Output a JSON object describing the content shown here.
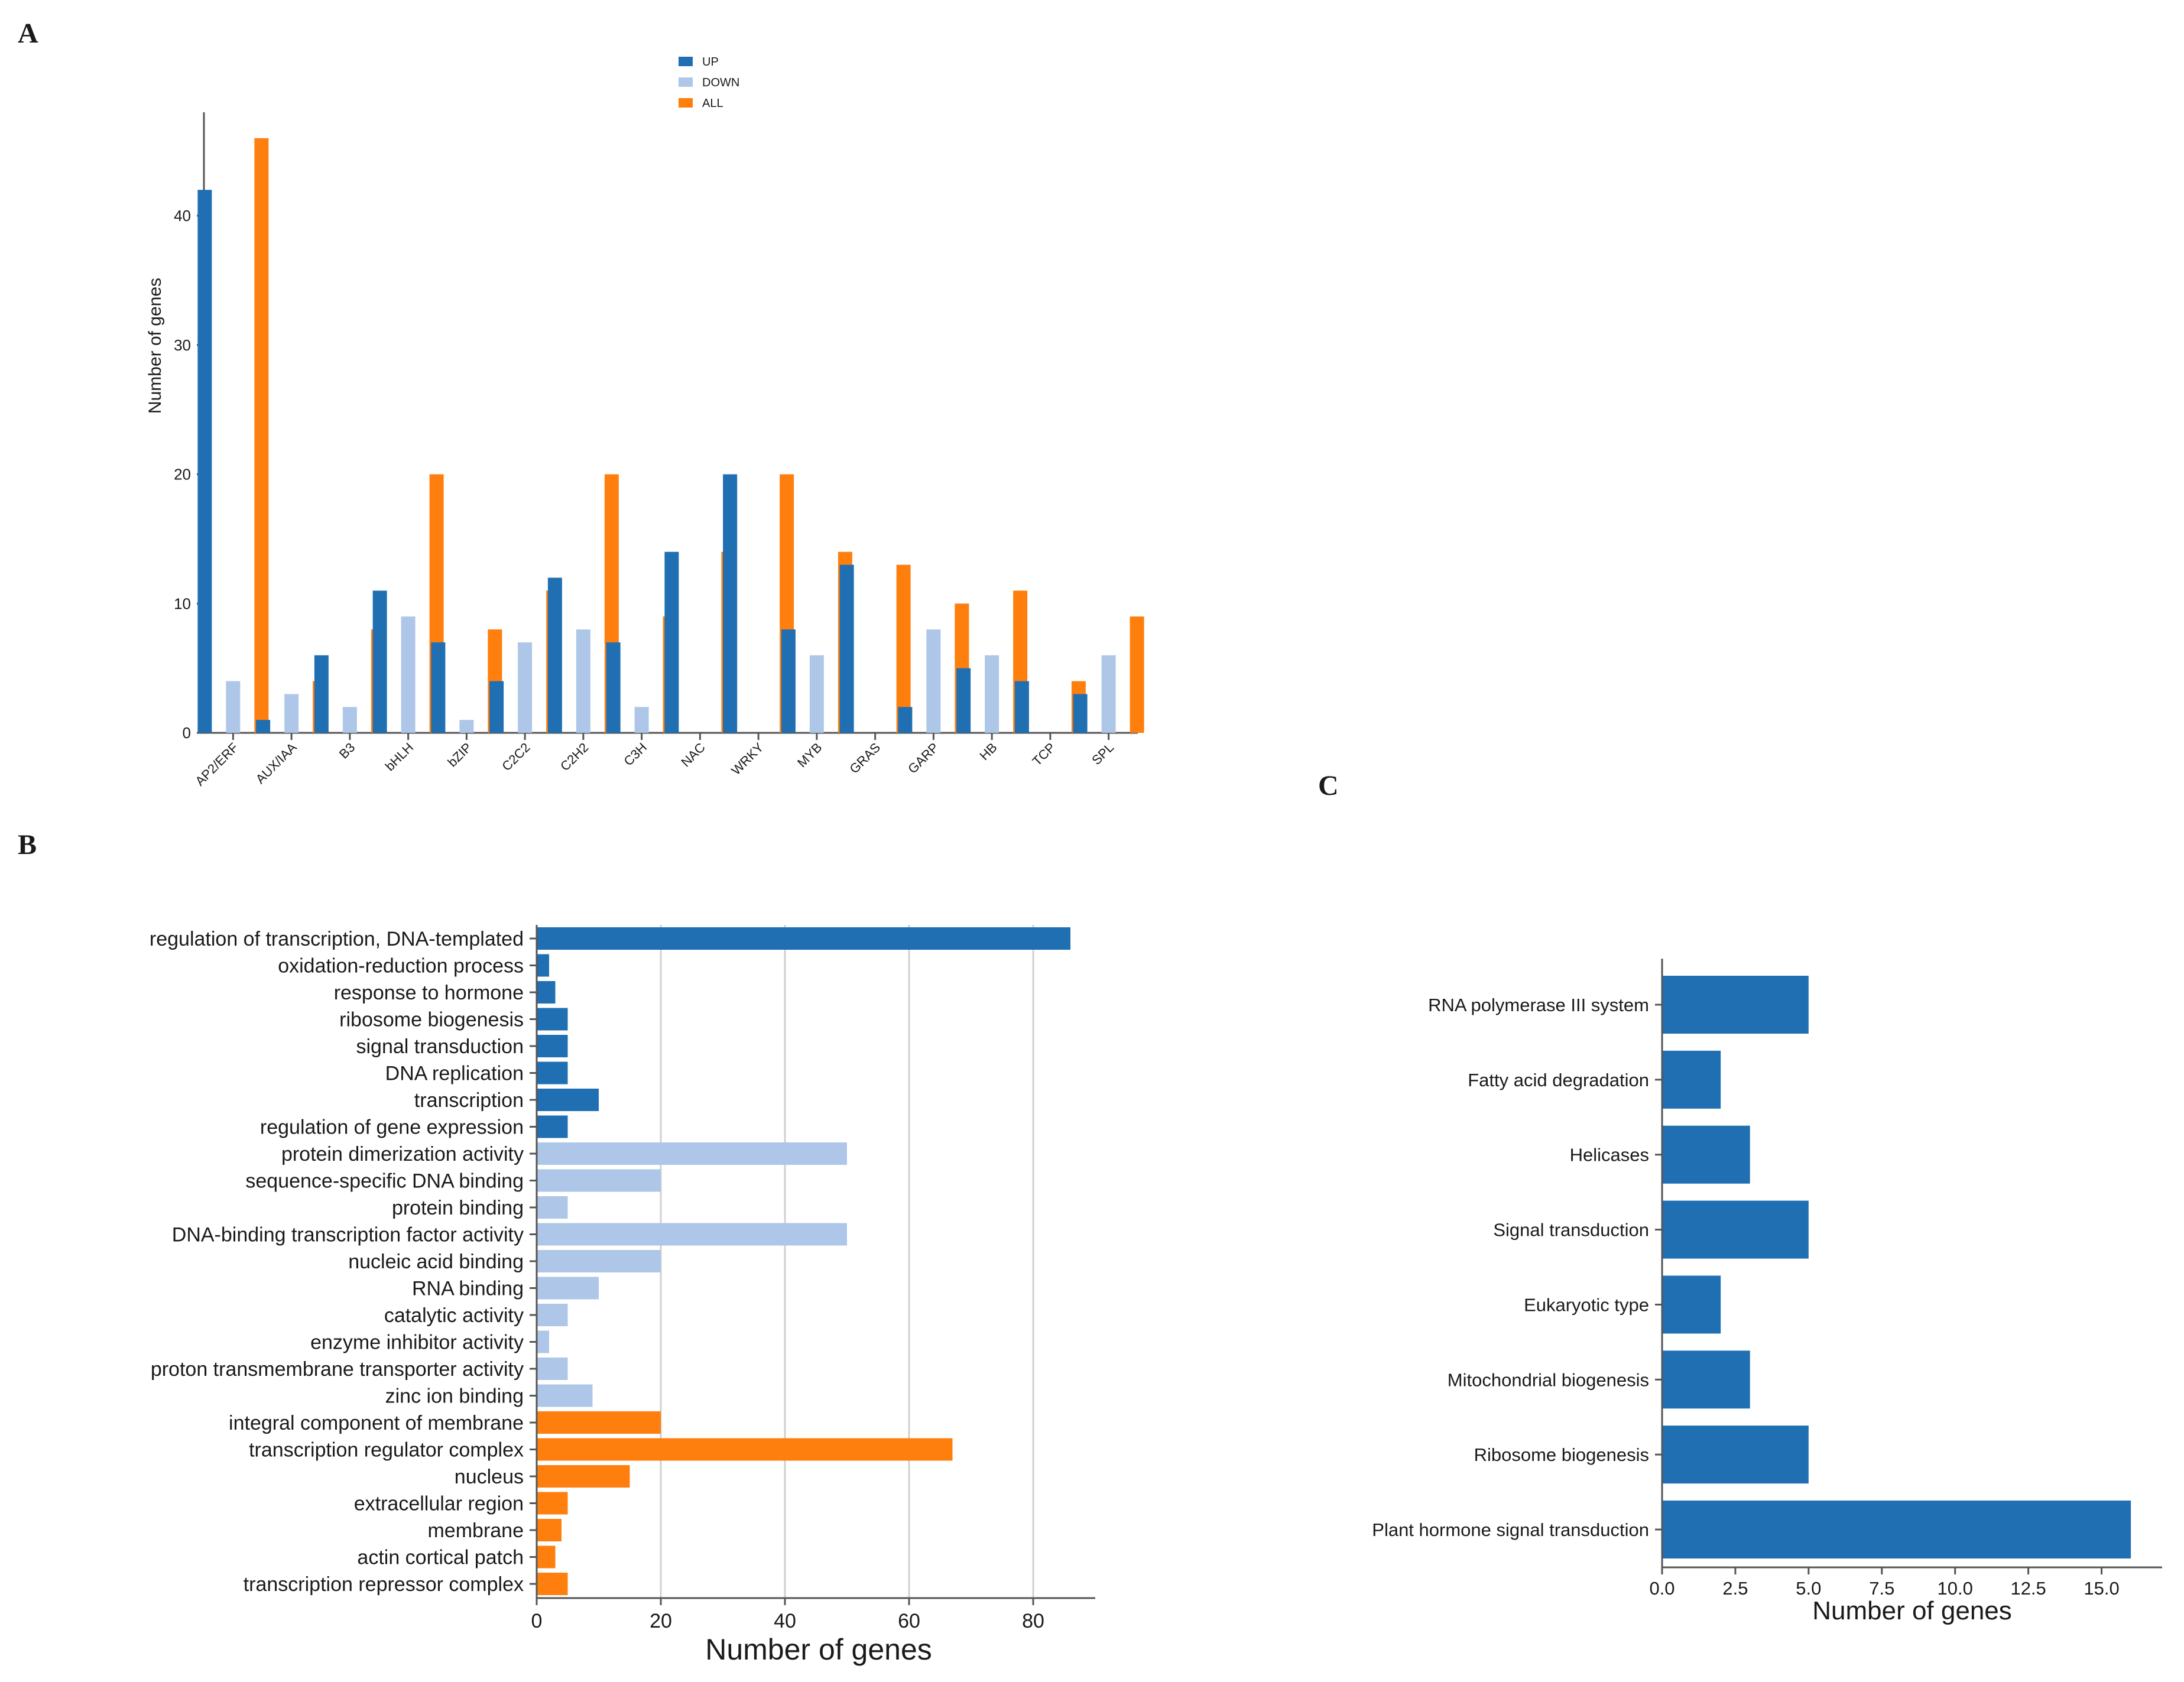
{
  "figure_labels": {
    "a": "A",
    "b": "B",
    "c": "C"
  },
  "colors": {
    "up": "#1f6fb2",
    "down": "#aec7e8",
    "all": "#ff7f0e",
    "bio": "#1f6fb2",
    "mol": "#aec7e8",
    "cel": "#ff7f0e",
    "pathway": "#1f6fb2"
  },
  "chart_data": [
    {
      "id": "A",
      "type": "bar",
      "title": "",
      "xlabel": "",
      "ylabel": "Number of genes",
      "ylim": [
        0,
        48
      ],
      "yticks": [
        0,
        10,
        20,
        30,
        40
      ],
      "legend": {
        "position": "top-center",
        "entries": [
          "UP",
          "DOWN",
          "ALL"
        ]
      },
      "grid": false,
      "categories": [
        "AP2/ERF",
        "AUX/IAA",
        "B3",
        "bHLH",
        "bZIP",
        "C2C2",
        "C2H2",
        "C3H",
        "NAC",
        "WRKY",
        "MYB",
        "GRAS",
        "GARP",
        "HB",
        "TCP",
        "SPL"
      ],
      "series": [
        {
          "name": "UP",
          "values": [
            42,
            1,
            6,
            11,
            7,
            4,
            12,
            7,
            14,
            20,
            8,
            13,
            2,
            5,
            4,
            3
          ]
        },
        {
          "name": "DOWN",
          "values": [
            4,
            3,
            2,
            9,
            1,
            7,
            8,
            2,
            0,
            0,
            6,
            0,
            8,
            6,
            0,
            6
          ]
        },
        {
          "name": "ALL",
          "values": [
            46,
            4,
            8,
            20,
            8,
            11,
            20,
            9,
            14,
            20,
            14,
            13,
            10,
            11,
            4,
            9
          ]
        }
      ]
    },
    {
      "id": "B",
      "type": "bar",
      "orientation": "horizontal",
      "title": "",
      "xlabel": "Number of genes",
      "ylabel": "",
      "xlim": [
        0,
        90
      ],
      "xticks": [
        0,
        20,
        40,
        60,
        80
      ],
      "grid": true,
      "categories": [
        "regulation of transcription, DNA-templated",
        "oxidation-reduction process",
        "response to hormone",
        "ribosome biogenesis",
        "signal transduction",
        "DNA replication",
        "transcription",
        "regulation of gene expression",
        "protein dimerization activity",
        "sequence-specific DNA binding",
        "protein binding",
        "DNA-binding transcription factor activity",
        "nucleic acid binding",
        "RNA binding",
        "catalytic activity",
        "enzyme inhibitor activity",
        "proton transmembrane transporter activity",
        "zinc ion binding",
        "integral component of membrane",
        "transcription regulator complex",
        "nucleus",
        "extracellular region",
        "membrane",
        "actin cortical patch",
        "transcription repressor complex"
      ],
      "values": [
        86,
        2,
        3,
        5,
        5,
        5,
        10,
        5,
        50,
        20,
        5,
        50,
        20,
        10,
        5,
        2,
        5,
        9,
        20,
        67,
        15,
        5,
        4,
        3,
        5
      ],
      "groups": [
        "bio",
        "bio",
        "bio",
        "bio",
        "bio",
        "bio",
        "bio",
        "bio",
        "mol",
        "mol",
        "mol",
        "mol",
        "mol",
        "mol",
        "mol",
        "mol",
        "mol",
        "mol",
        "cel",
        "cel",
        "cel",
        "cel",
        "cel",
        "cel",
        "cel"
      ]
    },
    {
      "id": "C",
      "type": "bar",
      "orientation": "horizontal",
      "title": "",
      "xlabel": "Number of genes",
      "ylabel": "",
      "xlim": [
        0,
        16.3
      ],
      "xticks": [
        0,
        2.5,
        5,
        7.5,
        10,
        12.5,
        15
      ],
      "xtick_labels": [
        "0.0",
        "2.5",
        "5.0",
        "7.5",
        "10.0",
        "12.5",
        "15.0"
      ],
      "grid": false,
      "categories": [
        "RNA polymerase III system",
        "Fatty acid degradation",
        "Helicases",
        "Signal transduction",
        "Eukaryotic type",
        "Mitochondrial biogenesis",
        "Ribosome biogenesis",
        "Plant hormone signal transduction"
      ],
      "values": [
        5,
        2,
        3,
        5,
        2,
        3,
        5,
        16
      ]
    }
  ]
}
